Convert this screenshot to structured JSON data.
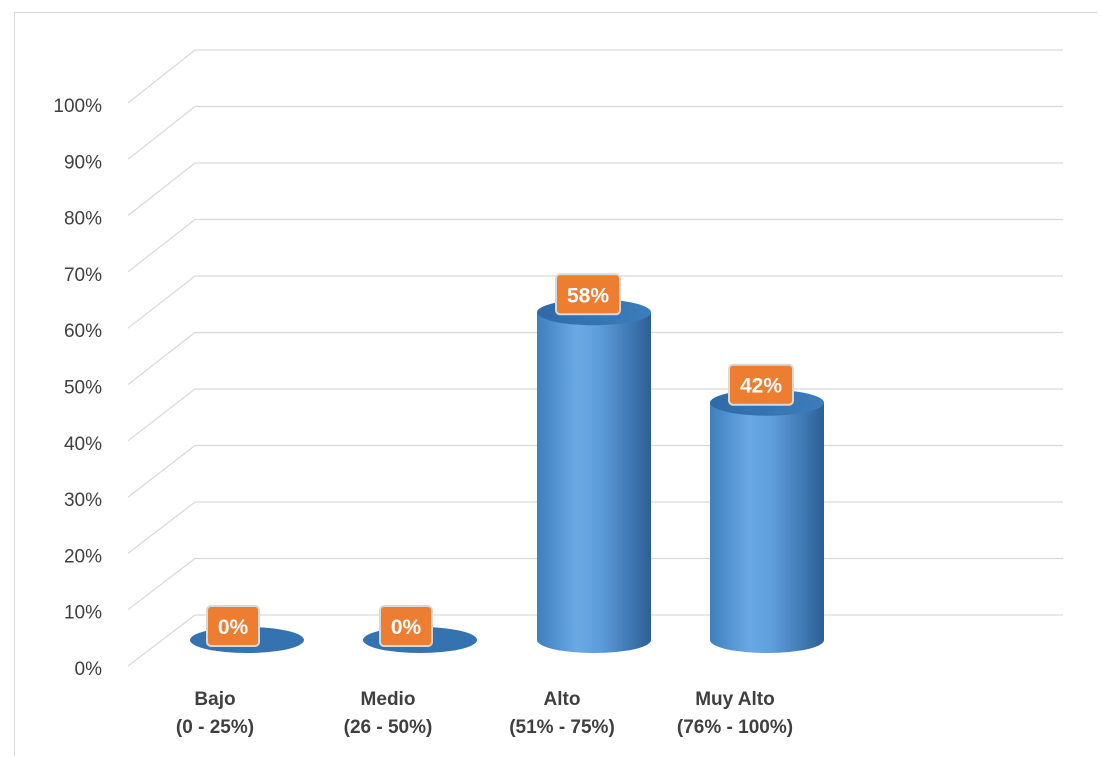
{
  "chart_data": {
    "type": "bar",
    "style": "3d-cylinder",
    "categories": [
      "Bajo\n(0 - 25%)",
      "Medio\n(26 - 50%)",
      "Alto\n(51% - 75%)",
      "Muy Alto\n(76% - 100%)"
    ],
    "values": [
      0,
      0,
      58,
      42
    ],
    "data_labels": [
      "0%",
      "0%",
      "58%",
      "42%"
    ],
    "yticks": [
      "0%",
      "10%",
      "20%",
      "30%",
      "40%",
      "50%",
      "60%",
      "70%",
      "80%",
      "90%",
      "100%"
    ],
    "ylim": [
      0,
      100
    ],
    "title": "",
    "xlabel": "",
    "ylabel": "",
    "grid": true,
    "legend": "none",
    "colors": {
      "bar": "#5b9bd5",
      "bar_dark": "#2e6da4",
      "label_bg": "#ed7d31",
      "label_border": "#d9d9d9",
      "grid": "#d9d9d9",
      "text": "#404040"
    }
  }
}
